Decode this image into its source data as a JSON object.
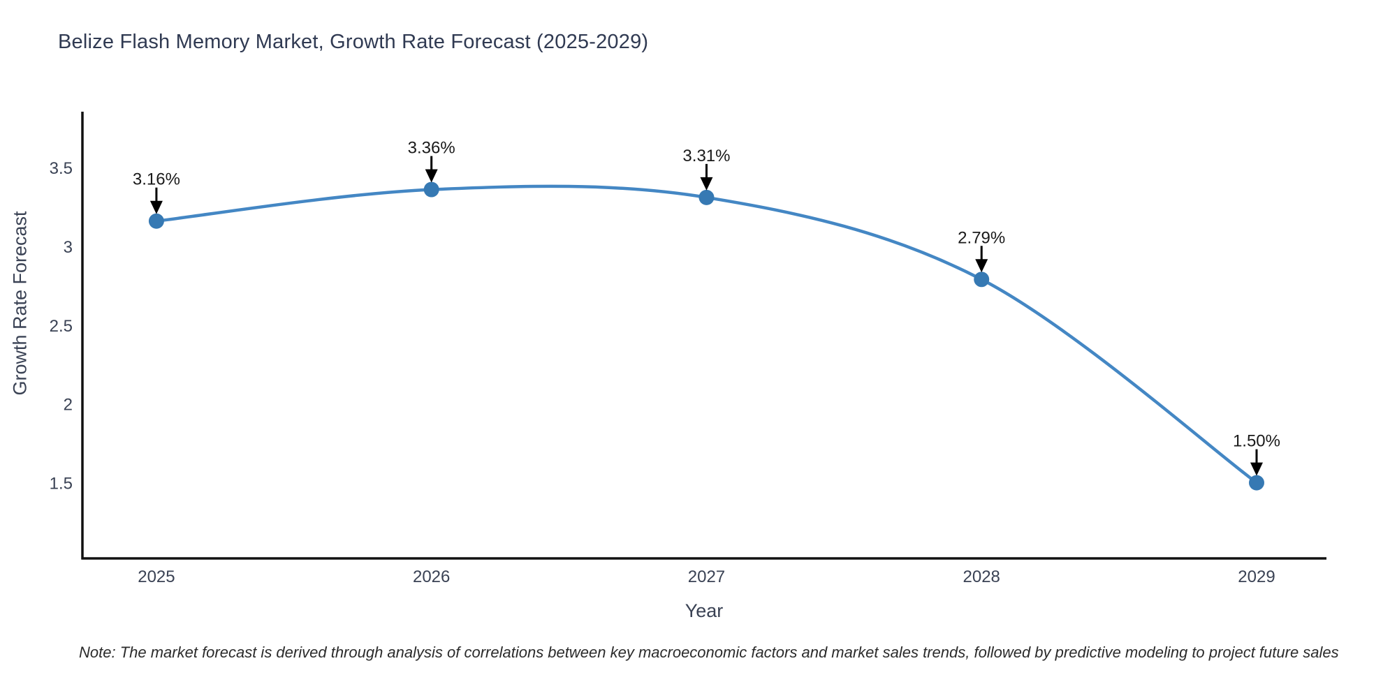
{
  "note": "Note: The market forecast is derived through analysis of correlations between key macroeconomic factors and market sales trends, followed by predictive modeling to project future sales",
  "chart_data": {
    "type": "line",
    "title": "Belize Flash Memory Market, Growth Rate Forecast (2025-2029)",
    "xlabel": "Year",
    "ylabel": "Growth Rate Forecast",
    "x": [
      2025,
      2026,
      2027,
      2028,
      2029
    ],
    "values": [
      3.16,
      3.36,
      3.31,
      2.79,
      1.5
    ],
    "point_labels": [
      "3.16%",
      "3.36%",
      "3.31%",
      "2.79%",
      "1.50%"
    ],
    "x_tick_labels": [
      "2025",
      "2026",
      "2027",
      "2028",
      "2029"
    ],
    "y_ticks": [
      3.5,
      3.0,
      2.5,
      2.0,
      1.5
    ],
    "y_tick_labels": [
      "3.5",
      "3",
      "2.5",
      "2",
      "1.5"
    ],
    "xlim": [
      2024.731,
      2029.254
    ],
    "ylim": [
      1.02,
      3.854
    ],
    "grid": false,
    "legend": "none",
    "line_smoothing": "spline",
    "colors": {
      "line": "#4487c4",
      "marker": "#3679b3",
      "annotation_text": "#1a1a1a",
      "annotation_arrow": "#000000",
      "axis_line": "#111111",
      "tick_text": "#3a4254",
      "title_text": "#303a52"
    }
  }
}
